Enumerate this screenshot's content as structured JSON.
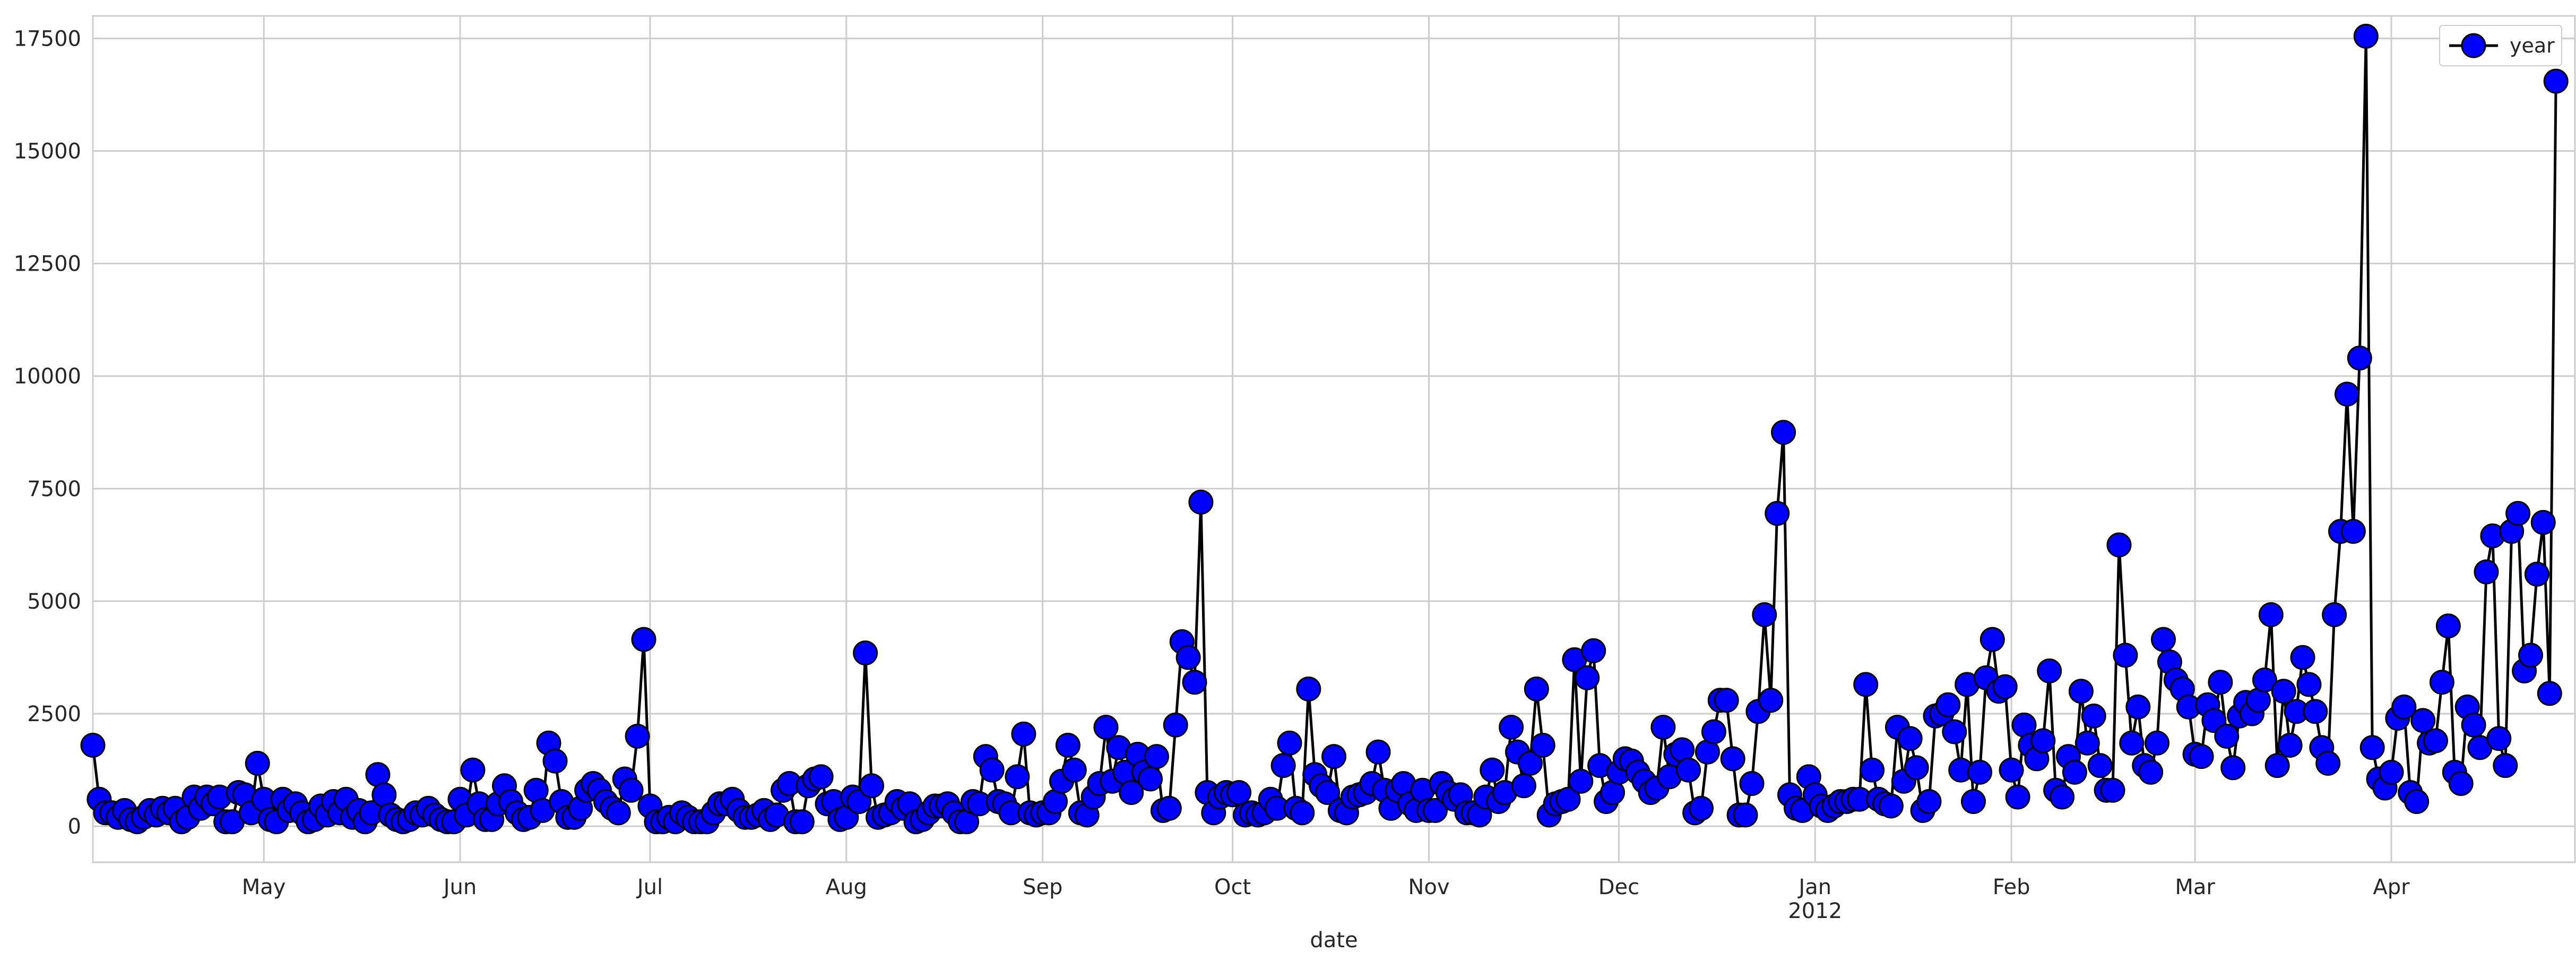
{
  "chart_data": {
    "type": "line",
    "title": "",
    "xlabel": "date",
    "ylabel": "",
    "x_range": [
      "2011-04-04",
      "2012-04-30"
    ],
    "ylim": [
      -800,
      18000
    ],
    "grid": true,
    "legend": {
      "position": "top-right",
      "entries": [
        "year"
      ]
    },
    "colors": {
      "line": "#000000",
      "marker_fill": "#0000ff",
      "marker_edge": "#000000",
      "grid": "#cccccc",
      "spine": "#cccccc",
      "background": "#ffffff"
    },
    "y_ticks": [
      0,
      2500,
      5000,
      7500,
      10000,
      12500,
      15000,
      17500
    ],
    "y_tick_labels": [
      "0",
      "2500",
      "5000",
      "7500",
      "10000",
      "12500",
      "15000",
      "17500"
    ],
    "x_ticks": [
      {
        "date": "2011-05-01",
        "label": "May"
      },
      {
        "date": "2011-06-01",
        "label": "Jun"
      },
      {
        "date": "2011-07-01",
        "label": "Jul"
      },
      {
        "date": "2011-08-01",
        "label": "Aug"
      },
      {
        "date": "2011-09-01",
        "label": "Sep"
      },
      {
        "date": "2011-10-01",
        "label": "Oct"
      },
      {
        "date": "2011-11-01",
        "label": "Nov"
      },
      {
        "date": "2011-12-01",
        "label": "Dec"
      },
      {
        "date": "2012-01-01",
        "label": "Jan",
        "sublabel": "2012"
      },
      {
        "date": "2012-02-01",
        "label": "Feb"
      },
      {
        "date": "2012-03-01",
        "label": "Mar"
      },
      {
        "date": "2012-04-01",
        "label": "Apr"
      }
    ],
    "series": [
      {
        "name": "year",
        "x_start": "2011-04-04",
        "x_step_days": 1,
        "values": [
          1800,
          600,
          300,
          300,
          200,
          350,
          150,
          100,
          200,
          350,
          250,
          400,
          300,
          400,
          100,
          200,
          650,
          400,
          650,
          500,
          650,
          100,
          100,
          750,
          700,
          300,
          1400,
          600,
          150,
          100,
          600,
          350,
          500,
          300,
          100,
          150,
          450,
          250,
          550,
          300,
          600,
          200,
          350,
          100,
          300,
          1150,
          700,
          250,
          150,
          100,
          150,
          300,
          250,
          400,
          250,
          150,
          100,
          100,
          600,
          250,
          1250,
          500,
          150,
          150,
          500,
          900,
          550,
          300,
          150,
          200,
          800,
          350,
          1850,
          1450,
          550,
          200,
          200,
          400,
          800,
          950,
          800,
          550,
          400,
          300,
          1050,
          800,
          2000,
          4150,
          450,
          100,
          100,
          200,
          100,
          300,
          200,
          100,
          100,
          100,
          300,
          500,
          500,
          600,
          350,
          200,
          200,
          250,
          350,
          150,
          250,
          800,
          950,
          100,
          100,
          900,
          1050,
          1100,
          500,
          550,
          150,
          200,
          650,
          550,
          3850,
          900,
          200,
          250,
          300,
          550,
          400,
          500,
          100,
          150,
          300,
          450,
          450,
          500,
          300,
          100,
          100,
          550,
          500,
          1550,
          1250,
          550,
          500,
          300,
          1100,
          2050,
          300,
          250,
          300,
          300,
          550,
          1000,
          1800,
          1250,
          300,
          250,
          650,
          950,
          2200,
          1000,
          1750,
          1200,
          750,
          1600,
          1200,
          1050,
          1550,
          350,
          400,
          2250,
          4100,
          3750,
          3200,
          7200,
          750,
          300,
          650,
          750,
          700,
          750,
          250,
          300,
          250,
          300,
          600,
          400,
          1350,
          1850,
          400,
          300,
          3050,
          1150,
          900,
          750,
          1550,
          350,
          300,
          650,
          700,
          750,
          950,
          1650,
          800,
          400,
          800,
          950,
          500,
          350,
          800,
          350,
          350,
          950,
          750,
          600,
          700,
          300,
          300,
          250,
          650,
          1250,
          550,
          750,
          2200,
          1650,
          900,
          1400,
          3050,
          1800,
          250,
          500,
          550,
          600,
          3700,
          1000,
          3300,
          3900,
          1350,
          550,
          750,
          1200,
          1500,
          1450,
          1200,
          1000,
          750,
          850,
          2200,
          1100,
          1600,
          1700,
          1250,
          300,
          400,
          1650,
          2100,
          2800,
          2800,
          1500,
          250,
          250,
          950,
          2550,
          4700,
          2800,
          6950,
          8750,
          700,
          400,
          350,
          1100,
          700,
          450,
          350,
          450,
          550,
          550,
          600,
          600,
          3150,
          1250,
          600,
          500,
          450,
          2200,
          1000,
          1950,
          1300,
          350,
          550,
          2450,
          2500,
          2700,
          2100,
          1250,
          3150,
          550,
          1200,
          3300,
          4150,
          3000,
          3100,
          1250,
          650,
          2250,
          1800,
          1500,
          1900,
          3450,
          800,
          650,
          1550,
          1200,
          3000,
          1850,
          2450,
          1350,
          800,
          800,
          6250,
          3800,
          1850,
          2650,
          1350,
          1200,
          1850,
          4150,
          3650,
          3250,
          3050,
          2650,
          1600,
          1550,
          2700,
          2350,
          3200,
          2000,
          1300,
          2450,
          2750,
          2500,
          2800,
          3250,
          4700,
          1350,
          3000,
          1800,
          2550,
          3750,
          3150,
          2550,
          1750,
          1400,
          4700,
          6550,
          9600,
          6550,
          10400,
          17550,
          1750,
          1050,
          850,
          1200,
          2400,
          2650,
          750,
          550,
          2350,
          1850,
          1900,
          3200,
          4450,
          1200,
          950,
          2650,
          2250,
          1750,
          5650,
          6450,
          1950,
          1350,
          6550,
          6950,
          3450,
          3800,
          5600,
          6750,
          2950,
          16550
        ]
      }
    ]
  }
}
